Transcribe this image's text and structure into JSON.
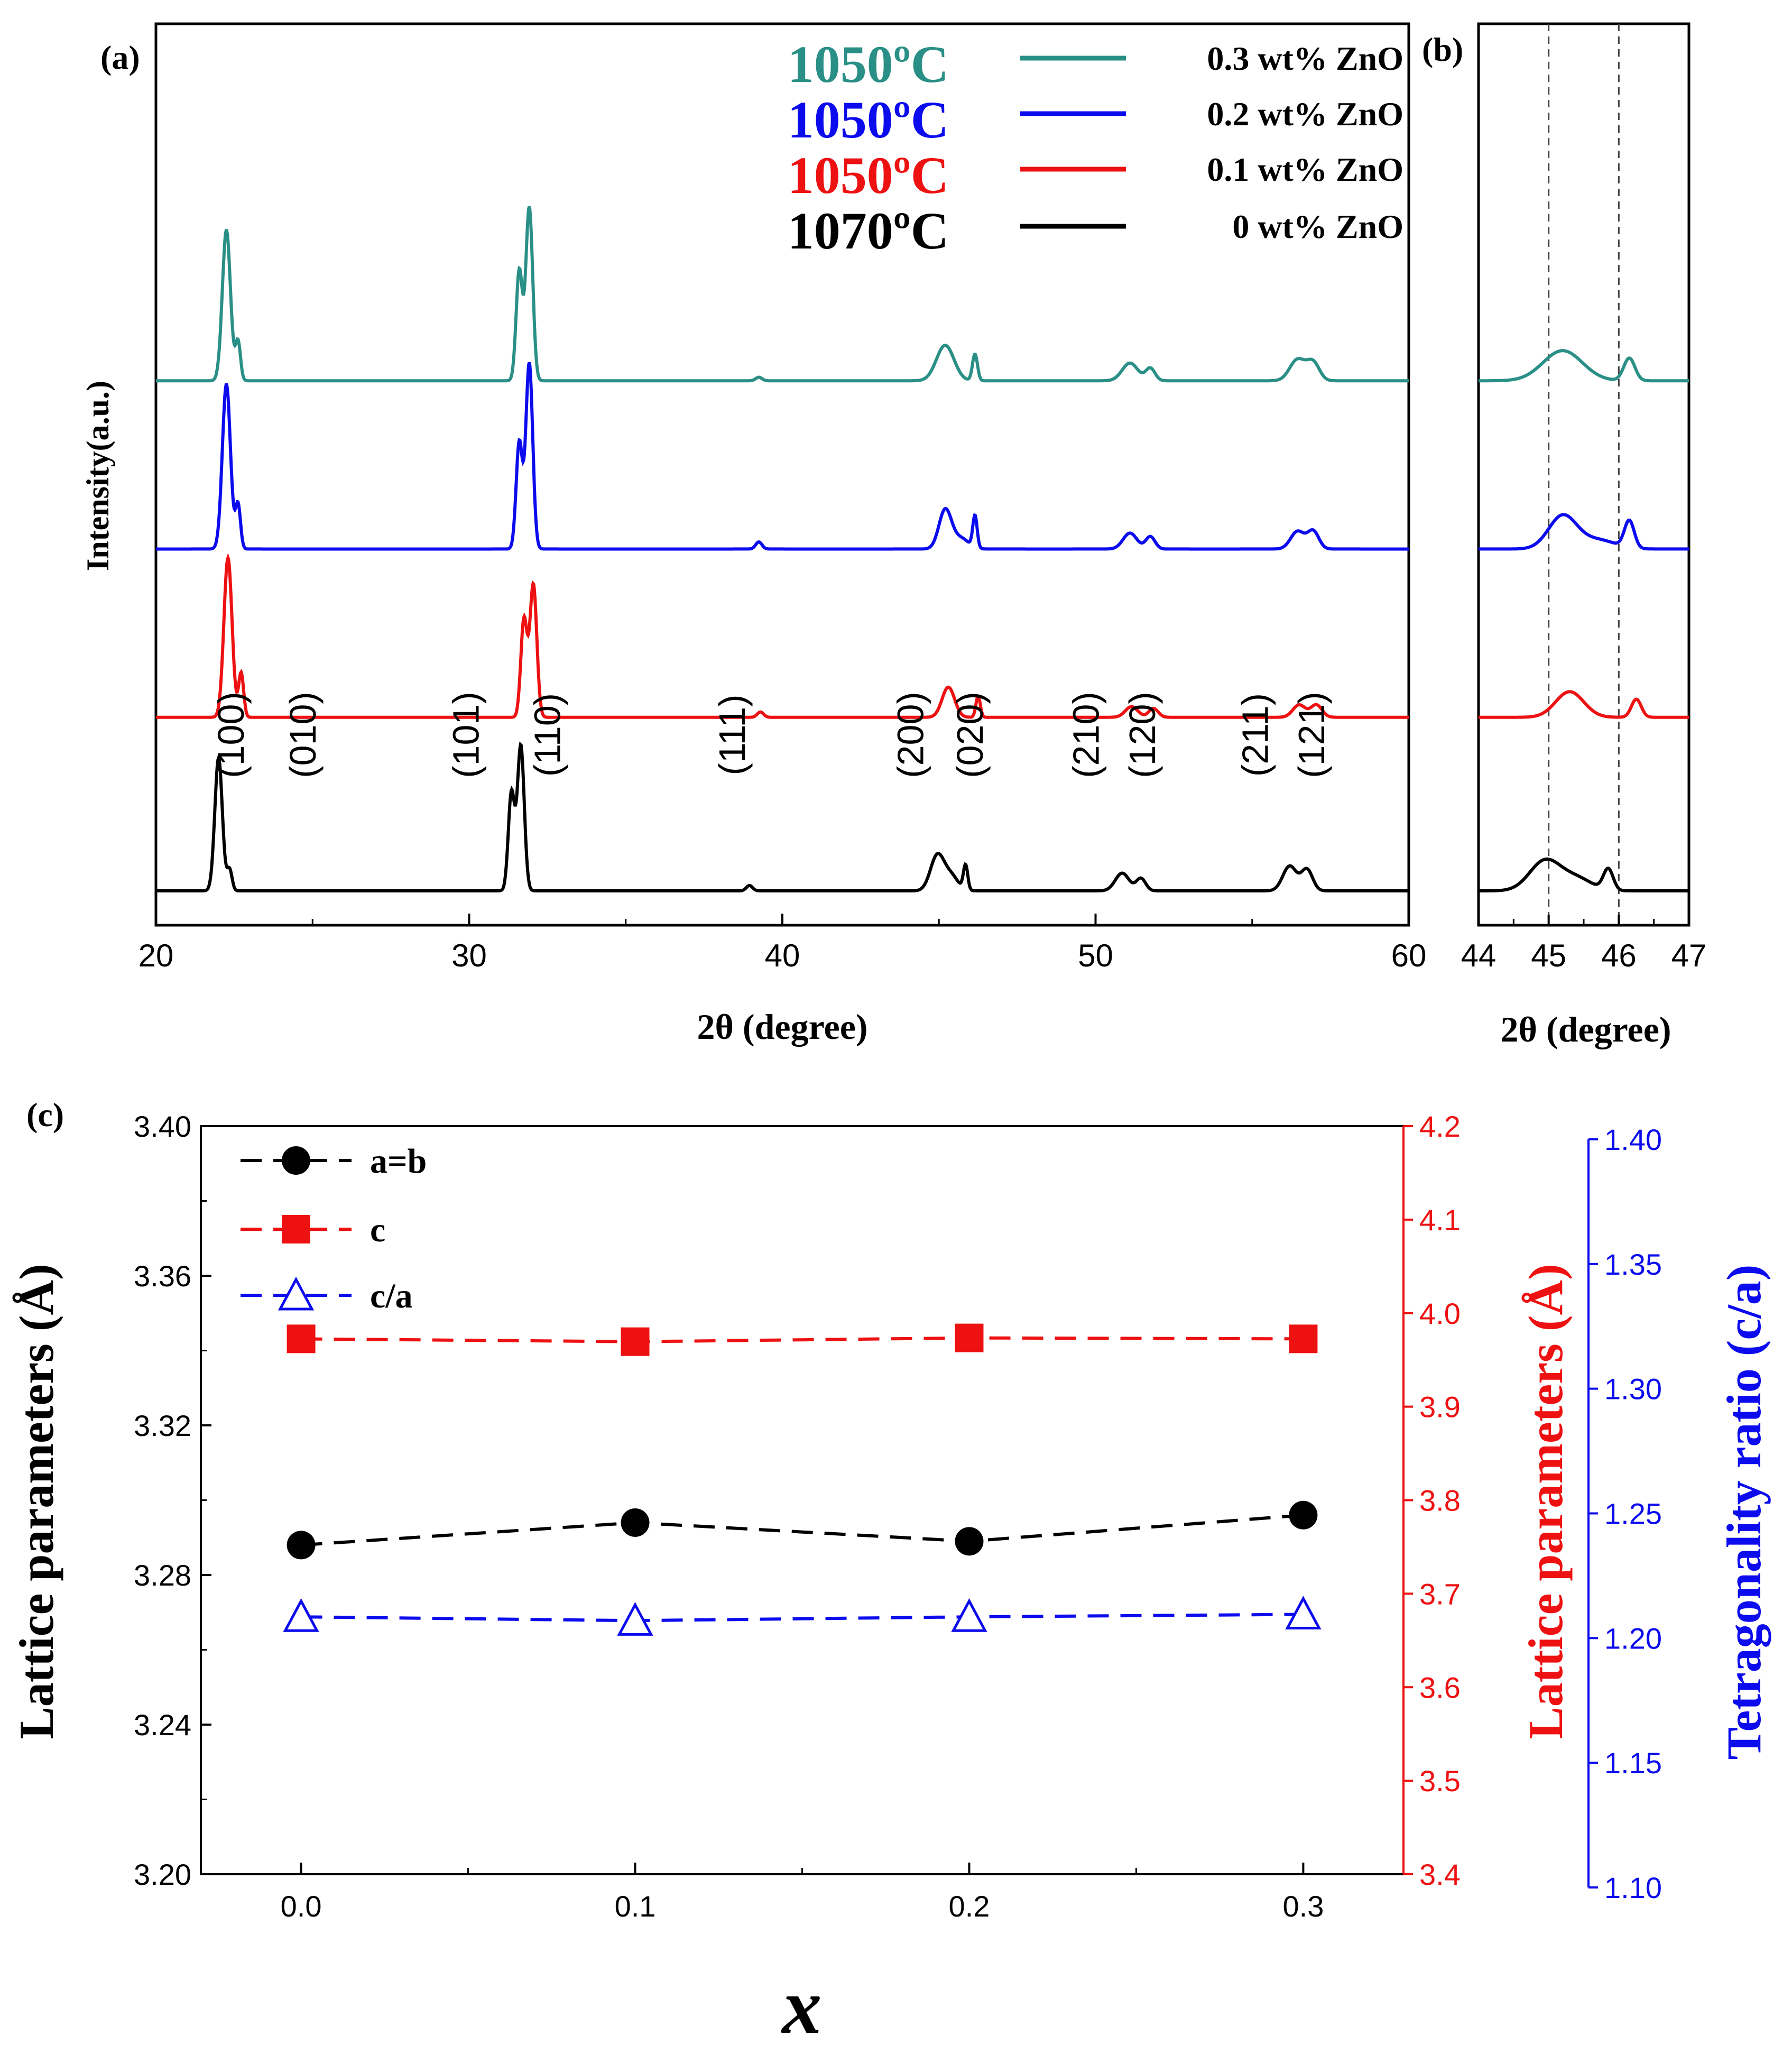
{
  "chart_data": [
    {
      "type": "line",
      "panel_label": "(a)",
      "xlabel": "2θ (degree)",
      "ylabel": "Intensity(a.u.)",
      "xlim": [
        20,
        60
      ],
      "xticks": [
        "20",
        "30",
        "40",
        "50",
        "60"
      ],
      "legend_position": "top-right",
      "legend": [
        {
          "temperature": "1050ºC",
          "label": "0.3 wt% ZnO",
          "color": "#2a8f86"
        },
        {
          "temperature": "1050ºC",
          "label": "0.2 wt% ZnO",
          "color": "#0b0bee"
        },
        {
          "temperature": "1050ºC",
          "label": "0.1 wt% ZnO",
          "color": "#ee1111"
        },
        {
          "temperature": "1070ºC",
          "label": "0 wt% ZnO",
          "color": "#000000"
        }
      ],
      "peak_labels": [
        {
          "text": "(100)",
          "x": 22.8
        },
        {
          "text": "(010)",
          "x": 25.1
        },
        {
          "text": "(101)",
          "x": 30.3
        },
        {
          "text": "(110)",
          "x": 32.9
        },
        {
          "text": "(111)",
          "x": 38.8
        },
        {
          "text": "(200)",
          "x": 44.5
        },
        {
          "text": "(020)",
          "x": 46.4
        },
        {
          "text": "(210)",
          "x": 50.1
        },
        {
          "text": "(120)",
          "x": 51.9
        },
        {
          "text": "(211)",
          "x": 55.5
        },
        {
          "text": "(121)",
          "x": 57.3
        }
      ],
      "series": [
        {
          "name": "0.3 wt% ZnO",
          "color": "#2a8f86",
          "offset": 2.88,
          "shift": 0.25,
          "peaks": [
            [
              22.25,
              0.85,
              0.13
            ],
            [
              22.62,
              0.22,
              0.08
            ],
            [
              31.6,
              0.62,
              0.1
            ],
            [
              31.92,
              0.98,
              0.11
            ],
            [
              39.25,
              0.02,
              0.1
            ],
            [
              45.2,
              0.2,
              0.28
            ],
            [
              46.15,
              0.15,
              0.08
            ],
            [
              51.1,
              0.1,
              0.25
            ],
            [
              51.75,
              0.07,
              0.15
            ],
            [
              56.45,
              0.12,
              0.25
            ],
            [
              56.95,
              0.1,
              0.2
            ]
          ]
        },
        {
          "name": "0.2 wt% ZnO",
          "color": "#0b0bee",
          "offset": 1.93,
          "shift": 0.25,
          "peaks": [
            [
              22.25,
              0.93,
              0.13
            ],
            [
              22.62,
              0.25,
              0.08
            ],
            [
              31.6,
              0.6,
              0.1
            ],
            [
              31.92,
              1.05,
              0.11
            ],
            [
              39.25,
              0.04,
              0.1
            ],
            [
              45.2,
              0.22,
              0.2
            ],
            [
              45.7,
              0.06,
              0.25
            ],
            [
              46.15,
              0.18,
              0.07
            ],
            [
              51.1,
              0.09,
              0.22
            ],
            [
              51.75,
              0.07,
              0.15
            ],
            [
              56.45,
              0.1,
              0.22
            ],
            [
              56.95,
              0.1,
              0.18
            ]
          ]
        },
        {
          "name": "0.1 wt% ZnO",
          "color": "#ee1111",
          "offset": 0.98,
          "shift": 0.35,
          "peaks": [
            [
              22.3,
              0.9,
              0.13
            ],
            [
              22.72,
              0.25,
              0.08
            ],
            [
              31.75,
              0.55,
              0.1
            ],
            [
              32.05,
              0.75,
              0.11
            ],
            [
              39.3,
              0.03,
              0.1
            ],
            [
              45.3,
              0.17,
              0.2
            ],
            [
              46.25,
              0.12,
              0.07
            ],
            [
              51.15,
              0.06,
              0.2
            ],
            [
              51.85,
              0.05,
              0.15
            ],
            [
              56.5,
              0.07,
              0.2
            ],
            [
              57.05,
              0.07,
              0.18
            ]
          ]
        },
        {
          "name": "0 wt% ZnO",
          "color": "#000000",
          "offset": 0.0,
          "shift": 0.0,
          "peaks": [
            [
              22.0,
              0.75,
              0.12
            ],
            [
              22.35,
              0.12,
              0.08
            ],
            [
              31.35,
              0.55,
              0.1
            ],
            [
              31.65,
              0.82,
              0.11
            ],
            [
              38.95,
              0.03,
              0.1
            ],
            [
              44.95,
              0.2,
              0.22
            ],
            [
              45.4,
              0.08,
              0.22
            ],
            [
              45.85,
              0.14,
              0.07
            ],
            [
              50.85,
              0.1,
              0.22
            ],
            [
              51.45,
              0.07,
              0.15
            ],
            [
              56.2,
              0.14,
              0.22
            ],
            [
              56.75,
              0.12,
              0.18
            ]
          ]
        }
      ]
    },
    {
      "type": "line",
      "panel_label": "(b)",
      "xlabel": "2θ (degree)",
      "xlim": [
        44,
        47
      ],
      "xticks": [
        "44",
        "45",
        "46",
        "47"
      ],
      "reference_lines": [
        45.0,
        46.0
      ],
      "series_ref": [
        "0.3 wt% ZnO",
        "0.2 wt% ZnO",
        "0.1 wt% ZnO",
        "0 wt% ZnO"
      ]
    },
    {
      "type": "line",
      "panel_label": "(c)",
      "xlabel": "x",
      "x": [
        0.0,
        0.1,
        0.2,
        0.3
      ],
      "xticks": [
        "0.0",
        "0.1",
        "0.2",
        "0.3"
      ],
      "xlim": [
        -0.03,
        0.33
      ],
      "ylabel_left": "Lattice parameters (Å)",
      "ylim_left": [
        3.2,
        3.4
      ],
      "yticks_left": [
        "3.20",
        "3.24",
        "3.28",
        "3.32",
        "3.36",
        "3.40"
      ],
      "ylabel_right1": "Lattice parameters (Å)",
      "ylim_right1": [
        3.4,
        4.2
      ],
      "yticks_right1": [
        "3.4",
        "3.5",
        "3.6",
        "3.7",
        "3.8",
        "3.9",
        "4.0",
        "4.1",
        "4.2"
      ],
      "ylabel_right2": "Tetragonality ratio (c/a)",
      "ylim_right2": [
        1.1,
        1.4
      ],
      "yticks_right2": [
        "1.10",
        "1.15",
        "1.20",
        "1.25",
        "1.30",
        "1.35",
        "1.40"
      ],
      "legend_position": "top-left",
      "series": [
        {
          "name": "a=b",
          "axis": "left",
          "marker": "circle",
          "color": "#000000",
          "values": [
            3.288,
            3.294,
            3.289,
            3.296
          ]
        },
        {
          "name": "c",
          "axis": "right1",
          "marker": "square",
          "color": "#ee1111",
          "values": [
            3.9725,
            3.9695,
            3.9735,
            3.9725
          ]
        },
        {
          "name": "c/a",
          "axis": "right2",
          "marker": "triangle-open",
          "color": "#0b0bee",
          "values": [
            1.2085,
            1.207,
            1.2085,
            1.2095
          ]
        }
      ]
    }
  ]
}
